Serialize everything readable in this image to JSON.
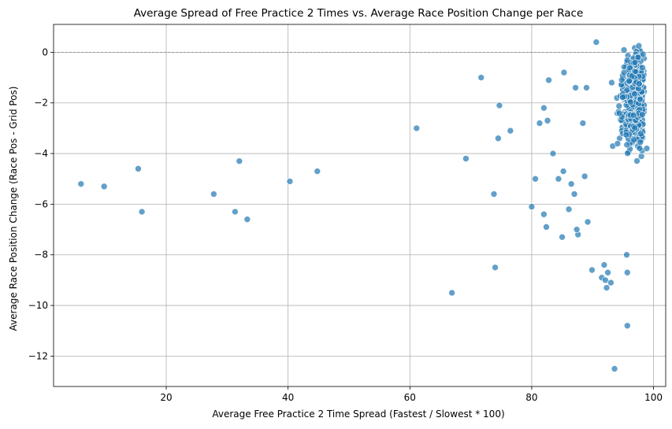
{
  "chart_data": {
    "type": "scatter",
    "title": "Average Spread of Free Practice 2 Times vs. Average Race Position Change per Race",
    "xlabel": "Average Free Practice 2 Time Spread (Fastest / Slowest * 100)",
    "ylabel": "Average Race Position Change (Race Pos - Grid Pos)",
    "xlim": [
      1.5,
      102
    ],
    "ylim": [
      -13.2,
      1.1
    ],
    "xticks": [
      20,
      40,
      60,
      80,
      100
    ],
    "yticks": [
      0,
      -2,
      -4,
      -6,
      -8,
      -10,
      -12
    ],
    "grid": true,
    "reference_line": {
      "y": 0,
      "style": "dashed",
      "color": "#808080"
    },
    "point_color": "#1f77b4",
    "point_alpha": 0.7,
    "sparse_points": [
      {
        "x": 6,
        "y": -5.2
      },
      {
        "x": 9.8,
        "y": -5.3
      },
      {
        "x": 15.4,
        "y": -4.6
      },
      {
        "x": 16,
        "y": -6.3
      },
      {
        "x": 27.8,
        "y": -5.6
      },
      {
        "x": 31.3,
        "y": -6.3
      },
      {
        "x": 32,
        "y": -4.3
      },
      {
        "x": 33.3,
        "y": -6.6
      },
      {
        "x": 40.3,
        "y": -5.1
      },
      {
        "x": 44.8,
        "y": -4.7
      },
      {
        "x": 61.1,
        "y": -3.0
      },
      {
        "x": 66.9,
        "y": -9.5
      },
      {
        "x": 69.2,
        "y": -4.2
      },
      {
        "x": 71.7,
        "y": -1.0
      },
      {
        "x": 73.8,
        "y": -5.6
      },
      {
        "x": 74.0,
        "y": -8.5
      },
      {
        "x": 74.5,
        "y": -3.4
      },
      {
        "x": 74.7,
        "y": -2.1
      },
      {
        "x": 76.5,
        "y": -3.1
      },
      {
        "x": 80.0,
        "y": -6.1
      },
      {
        "x": 80.6,
        "y": -5.0
      },
      {
        "x": 81.3,
        "y": -2.8
      },
      {
        "x": 82.0,
        "y": -2.2
      },
      {
        "x": 82.0,
        "y": -6.4
      },
      {
        "x": 82.4,
        "y": -6.9
      },
      {
        "x": 82.6,
        "y": -2.7
      },
      {
        "x": 82.8,
        "y": -1.1
      },
      {
        "x": 83.5,
        "y": -4.0
      },
      {
        "x": 84.4,
        "y": -5.0
      },
      {
        "x": 85.0,
        "y": -7.3
      },
      {
        "x": 85.3,
        "y": -0.8
      },
      {
        "x": 85.2,
        "y": -4.7
      },
      {
        "x": 86.1,
        "y": -6.2
      },
      {
        "x": 86.5,
        "y": -5.2
      },
      {
        "x": 87.0,
        "y": -5.6
      },
      {
        "x": 87.2,
        "y": -1.4
      },
      {
        "x": 87.6,
        "y": -7.2
      },
      {
        "x": 87.4,
        "y": -7.0
      },
      {
        "x": 88.4,
        "y": -2.8
      },
      {
        "x": 88.7,
        "y": -4.9
      },
      {
        "x": 89.0,
        "y": -1.4
      },
      {
        "x": 89.2,
        "y": -6.7
      },
      {
        "x": 89.9,
        "y": -8.6
      },
      {
        "x": 90.6,
        "y": 0.4
      },
      {
        "x": 91.5,
        "y": -8.9
      },
      {
        "x": 91.9,
        "y": -8.4
      },
      {
        "x": 92.1,
        "y": -9.0
      },
      {
        "x": 92.3,
        "y": -9.3
      },
      {
        "x": 92.5,
        "y": -8.7
      },
      {
        "x": 93.0,
        "y": -9.1
      },
      {
        "x": 95.6,
        "y": -8.0
      },
      {
        "x": 95.7,
        "y": -8.7
      },
      {
        "x": 95.7,
        "y": -10.8
      },
      {
        "x": 93.6,
        "y": -12.5
      },
      {
        "x": 98.9,
        "y": -3.8
      }
    ],
    "dense_cluster": {
      "x_range": [
        88,
        98.6
      ],
      "y_range": [
        -7.4,
        0.5
      ],
      "count": 560,
      "peak_x": 94.5,
      "peak_y": -2
    }
  }
}
